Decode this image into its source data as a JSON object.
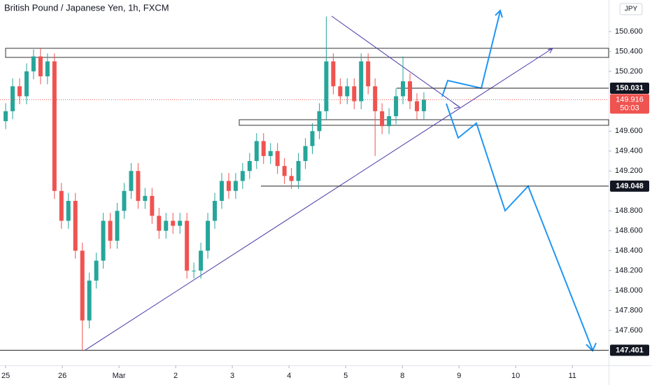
{
  "chart_data": {
    "type": "candlestick",
    "title": "British Pound / Japanese Yen, 1h, FXCM",
    "currency": "JPY",
    "up_color": "#26a69a",
    "down_color": "#ef5350",
    "x": [
      0,
      0.123,
      0.246,
      0.369,
      0.492,
      0.615,
      0.738,
      0.861,
      0.984,
      1.107,
      1.23,
      1.353,
      1.476,
      1.599,
      1.722,
      1.845,
      1.968,
      2.091,
      2.214,
      2.337,
      2.46,
      2.583,
      2.706,
      2.829,
      2.952,
      3.075,
      3.198,
      3.321,
      3.444,
      3.567,
      3.69,
      3.813,
      3.936,
      4.059,
      4.182,
      4.305,
      4.428,
      4.551,
      4.674,
      4.797,
      4.92,
      5.043,
      5.166,
      5.289,
      5.412,
      5.535,
      5.658,
      5.781,
      5.904,
      6.027,
      6.15,
      6.273,
      6.396,
      6.519,
      6.642,
      6.765,
      6.888,
      7.011,
      7.134,
      7.257,
      7.38
    ],
    "open": [
      149.7,
      149.8,
      150.05,
      149.95,
      150.2,
      150.35,
      150.15,
      150.3,
      149.0,
      148.7,
      148.9,
      148.4,
      147.7,
      148.1,
      148.3,
      148.7,
      148.5,
      148.8,
      149.0,
      149.2,
      148.9,
      148.95,
      148.75,
      148.6,
      148.7,
      148.65,
      148.7,
      148.2,
      148.2,
      148.4,
      148.7,
      148.9,
      149.1,
      149.0,
      149.1,
      149.2,
      149.3,
      149.5,
      149.35,
      149.4,
      149.25,
      149.15,
      149.1,
      149.3,
      149.45,
      149.6,
      149.8,
      150.3,
      150.05,
      149.95,
      150.05,
      149.9,
      150.3,
      150.05,
      149.8,
      149.65,
      149.75,
      149.95,
      150.1,
      149.9,
      149.8
    ],
    "high": [
      149.88,
      150.13,
      150.13,
      150.28,
      150.42,
      150.43,
      150.38,
      150.38,
      149.08,
      148.98,
      148.98,
      148.48,
      148.18,
      148.38,
      148.78,
      148.78,
      148.88,
      149.08,
      149.28,
      149.28,
      149.03,
      149.03,
      148.83,
      148.78,
      148.78,
      148.78,
      148.78,
      148.28,
      148.48,
      148.78,
      148.98,
      149.18,
      149.18,
      149.18,
      149.28,
      149.38,
      149.58,
      149.58,
      149.48,
      149.48,
      149.33,
      149.23,
      149.38,
      149.53,
      149.68,
      149.88,
      150.75,
      150.38,
      150.13,
      150.13,
      150.13,
      150.38,
      150.38,
      150.13,
      149.88,
      149.83,
      150.03,
      150.35,
      150.18,
      149.98,
      149.99
    ],
    "low": [
      149.62,
      149.72,
      149.87,
      149.87,
      150.12,
      150.07,
      150.07,
      148.92,
      148.62,
      148.62,
      148.32,
      147.4,
      147.62,
      148.02,
      148.22,
      148.42,
      148.42,
      148.72,
      148.92,
      148.82,
      148.82,
      148.67,
      148.52,
      148.52,
      148.57,
      148.57,
      148.12,
      148.12,
      148.12,
      148.32,
      148.62,
      148.82,
      148.92,
      148.92,
      149.02,
      149.12,
      149.22,
      149.27,
      149.27,
      149.17,
      149.07,
      149.02,
      149.02,
      149.22,
      149.37,
      149.52,
      149.72,
      149.97,
      149.87,
      149.87,
      149.82,
      149.82,
      149.97,
      149.35,
      149.57,
      149.57,
      149.67,
      149.87,
      149.82,
      149.72,
      149.72
    ],
    "close": [
      149.8,
      150.05,
      149.95,
      150.2,
      150.35,
      150.15,
      150.3,
      149.0,
      148.7,
      148.9,
      148.4,
      147.7,
      148.1,
      148.3,
      148.7,
      148.5,
      148.8,
      149.0,
      149.2,
      148.9,
      148.95,
      148.75,
      148.6,
      148.7,
      148.65,
      148.7,
      148.2,
      148.2,
      148.4,
      148.7,
      148.9,
      149.1,
      149.0,
      149.1,
      149.2,
      149.3,
      149.5,
      149.35,
      149.4,
      149.25,
      149.15,
      149.1,
      149.3,
      149.45,
      149.6,
      149.8,
      150.3,
      150.05,
      149.95,
      150.05,
      149.9,
      150.3,
      150.05,
      149.8,
      149.65,
      149.75,
      149.95,
      150.1,
      149.9,
      149.8,
      149.916
    ],
    "levels": [
      150.031,
      149.048,
      147.401
    ],
    "last_price": 149.916,
    "countdown": "50:03",
    "xlim": [
      -0.1,
      10.64
    ],
    "xticks": [
      {
        "value": 0,
        "label": "25"
      },
      {
        "value": 1,
        "label": "26"
      },
      {
        "value": 2,
        "label": "Mar"
      },
      {
        "value": 3,
        "label": "2"
      },
      {
        "value": 4,
        "label": "3"
      },
      {
        "value": 5,
        "label": "4"
      },
      {
        "value": 6,
        "label": "5"
      },
      {
        "value": 7,
        "label": "8"
      },
      {
        "value": 8,
        "label": "9"
      },
      {
        "value": 9,
        "label": "10"
      },
      {
        "value": 10,
        "label": "11"
      }
    ],
    "ylim": [
      147.249,
      150.916
    ],
    "yticks": [
      {
        "value": 150.6,
        "label": "150.600"
      },
      {
        "value": 150.4,
        "label": "150.400"
      },
      {
        "value": 150.2,
        "label": "150.200"
      },
      {
        "value": 149.6,
        "label": "149.600"
      },
      {
        "value": 149.4,
        "label": "149.400"
      },
      {
        "value": 149.2,
        "label": "149.200"
      },
      {
        "value": 148.8,
        "label": "148.800"
      },
      {
        "value": 148.6,
        "label": "148.600"
      },
      {
        "value": 148.4,
        "label": "148.400"
      },
      {
        "value": 148.2,
        "label": "148.200"
      },
      {
        "value": 148,
        "label": "148.000"
      },
      {
        "value": 147.8,
        "label": "147.800"
      },
      {
        "value": 147.6,
        "label": "147.600"
      }
    ],
    "grid": false
  }
}
